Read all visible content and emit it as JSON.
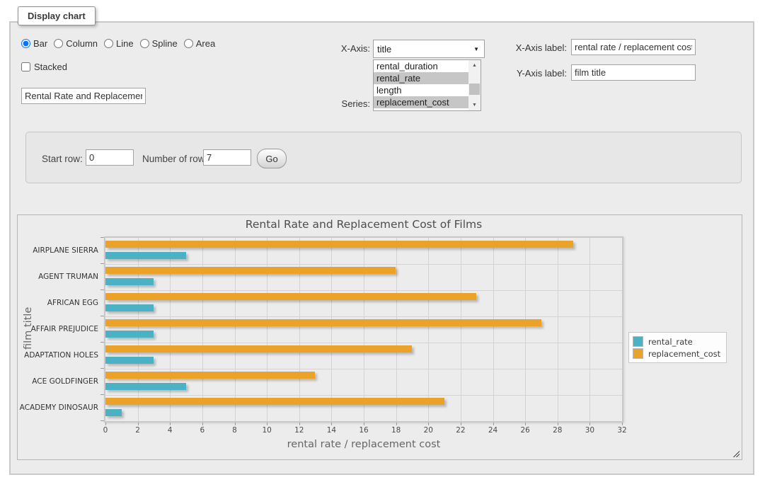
{
  "fieldset": {
    "legend": "Display chart"
  },
  "chart_type": {
    "options": [
      "Bar",
      "Column",
      "Line",
      "Spline",
      "Area"
    ],
    "selected": "Bar"
  },
  "stacked": {
    "label": "Stacked",
    "checked": false
  },
  "title_input": {
    "value": "Rental Rate and Replacemen"
  },
  "x_axis": {
    "label": "X-Axis:",
    "selected": "title"
  },
  "series_select": {
    "label": "Series:",
    "options": [
      "rental_duration",
      "rental_rate",
      "length",
      "replacement_cost"
    ],
    "selected": [
      "rental_rate",
      "replacement_cost"
    ]
  },
  "x_axis_label": {
    "label": "X-Axis label:",
    "value": "rental rate / replacement cost"
  },
  "y_axis_label": {
    "label": "Y-Axis label:",
    "value": "film title"
  },
  "rows_panel": {
    "start_row_label": "Start row:",
    "start_row_value": "0",
    "num_rows_label": "Number of rows:",
    "num_rows_value": "7",
    "go_label": "Go"
  },
  "icons": {
    "select_arrow": "▼",
    "scroll_up": "▲",
    "scroll_down": "▼"
  },
  "colors": {
    "page_bg": "#ffffff",
    "panel_bg": "#ececec",
    "grid_line": "#d3d3d3",
    "rental_rate": "#4bb2c5",
    "replacement_cost": "#eaa228"
  },
  "chart_data": {
    "type": "bar",
    "orientation": "horizontal",
    "title": "Rental Rate and Replacement Cost of Films",
    "categories": [
      "AIRPLANE SIERRA",
      "AGENT TRUMAN",
      "AFRICAN EGG",
      "AFFAIR PREJUDICE",
      "ADAPTATION HOLES",
      "ACE GOLDFINGER",
      "ACADEMY DINOSAUR"
    ],
    "series": [
      {
        "name": "rental_rate",
        "color": "#4bb2c5",
        "values": [
          4.99,
          2.99,
          2.99,
          2.99,
          2.99,
          4.99,
          0.99
        ]
      },
      {
        "name": "replacement_cost",
        "color": "#eaa228",
        "values": [
          28.99,
          17.99,
          22.99,
          26.99,
          18.99,
          12.99,
          20.99
        ]
      }
    ],
    "xlabel": "rental rate / replacement cost",
    "ylabel": "film title",
    "xlim": [
      0,
      32
    ],
    "x_ticks": [
      0,
      2,
      4,
      6,
      8,
      10,
      12,
      14,
      16,
      18,
      20,
      22,
      24,
      26,
      28,
      30,
      32
    ],
    "grid": true,
    "legend_position": "right"
  }
}
